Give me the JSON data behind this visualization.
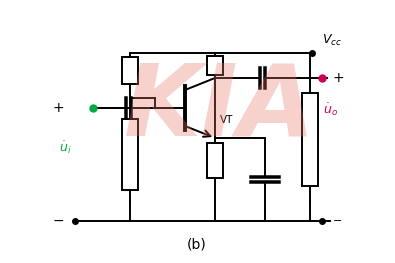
{
  "bg_color": "#ffffff",
  "line_color": "#000000",
  "green_color": "#00aa44",
  "pink_red": "#cc0055",
  "label_b": "(b)",
  "vt_label": "VT",
  "watermark": "KIA",
  "watermark_color": "#e87060",
  "watermark_alpha": 0.32
}
